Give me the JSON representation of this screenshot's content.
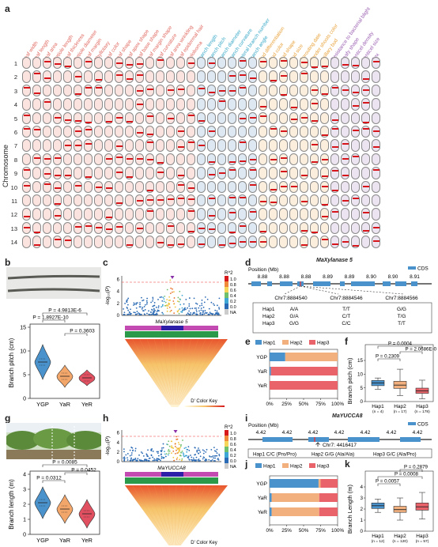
{
  "panel_labels": {
    "a": "a",
    "b": "b",
    "c": "c",
    "d": "d",
    "e": "e",
    "f": "f",
    "g": "g",
    "h": "h",
    "i": "i",
    "j": "j",
    "k": "k"
  },
  "panel_a": {
    "ylabel": "Chromosome",
    "traits": [
      {
        "name": "Leaf width",
        "color": "#e0685f"
      },
      {
        "name": "Leaf length",
        "color": "#e0685f"
      },
      {
        "name": "Leaf area",
        "color": "#e0685f"
      },
      {
        "name": "Petiole length",
        "color": "#e0685f"
      },
      {
        "name": "Leaf thickness",
        "color": "#e0685f"
      },
      {
        "name": "Petiole diameter",
        "color": "#e0685f"
      },
      {
        "name": "Leaf margin",
        "color": "#e0685f"
      },
      {
        "name": "Phyllotaxy",
        "color": "#e0685f"
      },
      {
        "name": "Leaf color",
        "color": "#e0685f"
      },
      {
        "name": "Leaf shape",
        "color": "#e0685f"
      },
      {
        "name": "Leaf apex shape",
        "color": "#e0685f"
      },
      {
        "name": "Leaf base shape",
        "color": "#e0685f"
      },
      {
        "name": "Leaf margin shape",
        "color": "#e0685f"
      },
      {
        "name": "Leaf curvature",
        "color": "#e0685f"
      },
      {
        "name": "Leaf area wrinkling",
        "color": "#e0685f"
      },
      {
        "name": "Leaf epidermal hair",
        "color": "#e0685f"
      },
      {
        "name": "Coloboma",
        "color": "#e0685f"
      },
      {
        "name": "Branch length",
        "color": "#3aa9c8"
      },
      {
        "name": "Branch pitch",
        "color": "#3aa9c8"
      },
      {
        "name": "Branch diameter",
        "color": "#3aa9c8"
      },
      {
        "name": "Branch curvature",
        "color": "#3aa9c8"
      },
      {
        "name": "Lateral branch number",
        "color": "#3aa9c8"
      },
      {
        "name": "Branch angle",
        "color": "#3aa9c8"
      },
      {
        "name": "Bud differentiation",
        "color": "#e8a23a"
      },
      {
        "name": "Bud color",
        "color": "#e8a23a"
      },
      {
        "name": "Bud shape",
        "color": "#e8a23a"
      },
      {
        "name": "Bud size",
        "color": "#e8a23a"
      },
      {
        "name": "Sprouting date",
        "color": "#e8a23a"
      },
      {
        "name": "Tender shoots color",
        "color": "#e8a23a"
      },
      {
        "name": "Axillary bud",
        "color": "#e8a23a"
      },
      {
        "name": "Resistance to bacterial blight",
        "color": "#9a5fb0"
      },
      {
        "name": "Leafy shape",
        "color": "#9a5fb0"
      },
      {
        "name": "Lenticel density",
        "color": "#9a5fb0"
      },
      {
        "name": "Lenticel size",
        "color": "#9a5fb0"
      },
      {
        "name": "Sex",
        "color": "#9a5fb0"
      }
    ],
    "chromosomes": [
      "1",
      "2",
      "3",
      "4",
      "5",
      "6",
      "7",
      "8",
      "9",
      "10",
      "11",
      "12",
      "13",
      "14"
    ],
    "fills": {
      "leaf": "#fbe3df",
      "branch": "#dde8f3",
      "bud": "#fbeedc",
      "other": "#ece4f1"
    }
  },
  "panel_b": {
    "ylabel": "Branch pitch (cm)",
    "groups": [
      "YGP",
      "YaR",
      "YeR"
    ],
    "pvalues": [
      "P = 4.9813E-6",
      "P = 1.8927E-10",
      "P = 0.3603"
    ],
    "yticks": [
      "0",
      "5",
      "10",
      "15"
    ],
    "colors": [
      "#4a92cc",
      "#f2a66a",
      "#e05060"
    ]
  },
  "panel_c": {
    "ylabel": "-log₁₀(P)",
    "gene": "MaXylanase 5",
    "legend_title": "R^2",
    "legend_ticks": [
      "1.0",
      "0.8",
      "0.6",
      "0.4",
      "0.2",
      "0.0",
      "NA"
    ],
    "yticks": [
      "0",
      "2",
      "4",
      "6"
    ],
    "ld_title": "D' Color Key",
    "ld_min": "0.0",
    "ld_max": "1.0"
  },
  "panel_d": {
    "title": "MaXylanase 5",
    "axis_label": "Position (Mb)",
    "ticks": [
      "8.88",
      "8.88",
      "8.88",
      "8.89",
      "8.89",
      "8.90",
      "8.90",
      "8.91"
    ],
    "cds_label": "CDS",
    "snps": [
      "Chr7:8884540",
      "Chr7:8884546",
      "Chr7:8884566"
    ],
    "haplotypes": [
      {
        "name": "Hap1",
        "alleles": [
          "A/A",
          "T/T",
          "G/G"
        ]
      },
      {
        "name": "Hap2",
        "alleles": [
          "G/A",
          "C/T",
          "T/G"
        ]
      },
      {
        "name": "Hap3",
        "alleles": [
          "G/G",
          "C/C",
          "T/T"
        ]
      }
    ]
  },
  "panel_e": {
    "legend": [
      "Hap1",
      "Hap2",
      "Hap3"
    ],
    "colors": [
      "#4a92cc",
      "#f2b07e",
      "#e8636a"
    ],
    "rows": [
      {
        "name": "YGP",
        "values": [
          23,
          77,
          0
        ]
      },
      {
        "name": "YaR",
        "values": [
          2,
          0,
          98
        ]
      },
      {
        "name": "YeR",
        "values": [
          0,
          0,
          100
        ]
      }
    ],
    "xticks": [
      "0%",
      "25%",
      "50%",
      "75%",
      "100%"
    ]
  },
  "panel_f": {
    "ylabel": "Branch pitch (cm)",
    "groups": [
      {
        "name": "Hap1",
        "n": "(n = 4)"
      },
      {
        "name": "Hap2",
        "n": "(n = 17)"
      },
      {
        "name": "Hap3",
        "n": "(n = 178)"
      }
    ],
    "pvalues": [
      "P = 0.0004",
      "P = 2.0686E-07",
      "P = 0.2309"
    ],
    "yticks": [
      "0",
      "5",
      "10",
      "15"
    ],
    "box_stats": [
      {
        "min": 4.5,
        "q1": 5.8,
        "median": 6.8,
        "q3": 7.7,
        "max": 8.6,
        "color": "#4a92cc"
      },
      {
        "min": 2.2,
        "q1": 4.8,
        "median": 6.0,
        "q3": 7.4,
        "max": 11.8,
        "color": "#f2b07e"
      },
      {
        "min": 1.0,
        "q1": 3.0,
        "median": 3.9,
        "q3": 4.9,
        "max": 7.8,
        "color": "#e8636a"
      }
    ]
  },
  "panel_g": {
    "ylabel": "Branch length (m)",
    "groups": [
      "YGP",
      "YaR",
      "YeR"
    ],
    "pvalues": [
      "P = 0.0085",
      "P = 0.0452",
      "P = 0.0312"
    ],
    "yticks": [
      "0",
      "1",
      "2",
      "3",
      "4"
    ],
    "colors": [
      "#4a92cc",
      "#f2a66a",
      "#e05060"
    ]
  },
  "panel_h": {
    "ylabel": "-log₁₀(P)",
    "gene": "MaYUCCA8",
    "legend_title": "R^2",
    "legend_ticks": [
      "1.0",
      "0.8",
      "0.6",
      "0.4",
      "0.2",
      "0.0",
      "NA"
    ],
    "yticks": [
      "0",
      "2",
      "4",
      "6"
    ],
    "ld_title": "D' Color Key",
    "ld_min": "0.0",
    "ld_max": "1.0"
  },
  "panel_i": {
    "title": "MaYUCCA8",
    "axis_label": "Position (Mb)",
    "ticks": [
      "4.42",
      "4.42",
      "4.42",
      "4.42",
      "4.42",
      "4.42",
      "4.42"
    ],
    "cds_label": "CDS",
    "snp": "Chr7: 4416417",
    "haplotypes": [
      "Hap1 C/C (Pro/Pro)",
      "Hap2 G/G (Ala/Ala)",
      "Hap3 G/C (Ala/Pro)"
    ]
  },
  "panel_j": {
    "legend": [
      "Hap1",
      "Hap2",
      "Hap3"
    ],
    "colors": [
      "#4a92cc",
      "#f2b07e",
      "#e8636a"
    ],
    "rows": [
      {
        "name": "YGP",
        "values": [
          72,
          3,
          25
        ]
      },
      {
        "name": "YaR",
        "values": [
          3,
          70,
          27
        ]
      },
      {
        "name": "YeR",
        "values": [
          3,
          70,
          27
        ]
      }
    ],
    "xticks": [
      "0%",
      "25%",
      "50%",
      "75%",
      "100%"
    ]
  },
  "panel_k": {
    "ylabel": "Branch Length (m)",
    "groups": [
      {
        "name": "Hap1",
        "n": "(n = 12)"
      },
      {
        "name": "Hap2",
        "n": "(n = 120)"
      },
      {
        "name": "Hap3",
        "n": "(n = 57)"
      }
    ],
    "pvalues": [
      "P = 0.2879",
      "P = 0.0008",
      "P = 0.0057"
    ],
    "yticks": [
      "0",
      "1",
      "2",
      "3",
      "4"
    ],
    "box_stats": [
      {
        "min": 1.7,
        "q1": 2.05,
        "median": 2.3,
        "q3": 2.55,
        "max": 2.9,
        "color": "#4a92cc"
      },
      {
        "min": 1.0,
        "q1": 1.7,
        "median": 1.95,
        "q3": 2.25,
        "max": 3.0,
        "color": "#f2b07e"
      },
      {
        "min": 1.1,
        "q1": 1.9,
        "median": 2.2,
        "q3": 2.55,
        "max": 3.5,
        "color": "#e8636a"
      }
    ]
  }
}
